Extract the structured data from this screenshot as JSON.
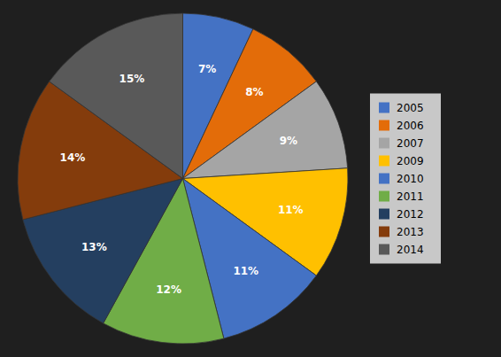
{
  "chart_data": {
    "type": "pie",
    "categories": [
      "2005",
      "2006",
      "2007",
      "2009",
      "2010",
      "2011",
      "2012",
      "2013",
      "2014"
    ],
    "values": [
      7,
      8,
      9,
      11,
      11,
      12,
      13,
      14,
      15
    ],
    "value_labels": [
      "7%",
      "8%",
      "9%",
      "11%",
      "11%",
      "12%",
      "13%",
      "14%",
      "15%"
    ],
    "colors": [
      "#4472C4",
      "#E36C09",
      "#A5A5A5",
      "#FFC000",
      "#4472C4",
      "#70AD47",
      "#243F60",
      "#843C0C",
      "#595959"
    ],
    "data_labels": true,
    "legend": "right"
  }
}
